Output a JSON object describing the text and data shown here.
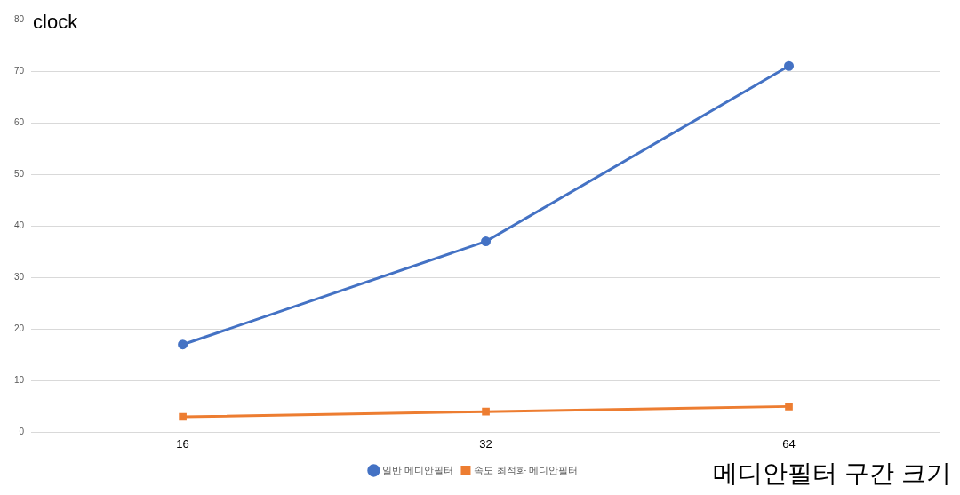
{
  "chart_data": {
    "type": "line",
    "ylabel": "clock",
    "xlabel": "메디안필터 구간 크기",
    "categories": [
      "16",
      "32",
      "64"
    ],
    "series": [
      {
        "name": "일반 메디안필터",
        "color": "#4472c4",
        "values": [
          17,
          37,
          71
        ],
        "marker": "circle"
      },
      {
        "name": "속도 최적화 메디안필터",
        "color": "#ed7d31",
        "values": [
          3,
          4,
          5
        ],
        "marker": "square"
      }
    ],
    "ylim": [
      0,
      80
    ],
    "yticks": [
      0,
      10,
      20,
      30,
      40,
      50,
      60,
      70,
      80
    ],
    "grid": "y",
    "legend": "bottom",
    "line_style": "solid"
  }
}
